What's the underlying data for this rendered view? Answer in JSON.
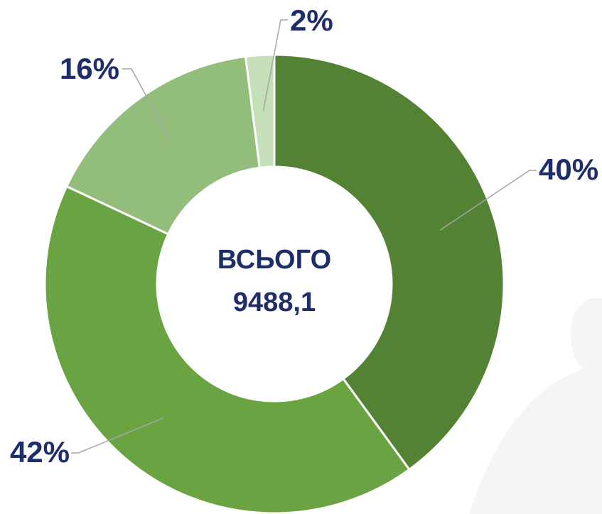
{
  "chart_data": {
    "type": "donut",
    "values": [
      40,
      42,
      16,
      2
    ],
    "value_labels": [
      "40%",
      "42%",
      "16%",
      "2%"
    ],
    "colors": [
      "#548235",
      "#6aa342",
      "#93bd7a",
      "#c5dfb8"
    ],
    "center_label": "ВСЬОГО",
    "total_label": "9488,1"
  }
}
